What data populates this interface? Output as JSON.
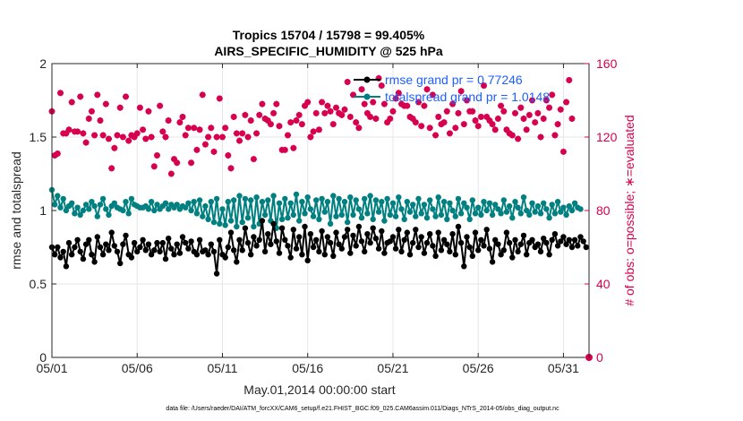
{
  "chart_data": {
    "type": "line",
    "title": "Tropics 15704 / 15798 = 99.405%",
    "subtitle": "AIRS_SPECIFIC_HUMIDITY @ 525 hPa",
    "xlabel": "May.01,2014 00:00:00 start",
    "ylabel": "rmse and totalspread",
    "y2label": "# of obs: o=possible; ∗=evaluated",
    "footer": "data file: /Users/raeder/DAI/ATM_forcXX/CAM6_setup/f.e21.FHIST_BGC.f09_025.CAM6assim.011/Diags_NTrS_2014-05/obs_diag_output.nc",
    "xlim": [
      1,
      32.5
    ],
    "ylim": [
      0,
      2
    ],
    "y2lim": [
      0,
      160
    ],
    "x_ticks": [
      1,
      6,
      11,
      16,
      21,
      26,
      31
    ],
    "x_tick_labels": [
      "05/01",
      "05/06",
      "05/11",
      "05/16",
      "05/21",
      "05/26",
      "05/31"
    ],
    "y_ticks": [
      0,
      0.5,
      1,
      1.5,
      2
    ],
    "y_tick_labels": [
      "0",
      "0.5",
      "1",
      "1.5",
      "2"
    ],
    "y2_ticks": [
      0,
      40,
      80,
      120,
      160
    ],
    "y2_tick_labels": [
      "0",
      "40",
      "80",
      "120",
      "160"
    ],
    "colors": {
      "rmse": "#000000",
      "spread": "#008080",
      "obs": "#D6004E",
      "legend_text": "#1F5FFF"
    },
    "series": [
      {
        "name": "rmse grand pr = 0.77246",
        "axis": "left",
        "marker": "dot",
        "values": [
          0.75,
          0.7,
          0.75,
          0.68,
          0.72,
          0.62,
          0.78,
          0.7,
          0.75,
          0.8,
          0.72,
          0.67,
          0.77,
          0.8,
          0.7,
          0.65,
          0.82,
          0.75,
          0.7,
          0.77,
          0.73,
          0.85,
          0.76,
          0.72,
          0.64,
          0.77,
          0.83,
          0.7,
          0.68,
          0.78,
          0.72,
          0.75,
          0.8,
          0.73,
          0.77,
          0.7,
          0.73,
          0.78,
          0.72,
          0.78,
          0.67,
          0.81,
          0.74,
          0.7,
          0.77,
          0.71,
          0.82,
          0.78,
          0.74,
          0.79,
          0.72,
          0.7,
          0.8,
          0.72,
          0.73,
          0.7,
          0.77,
          0.72,
          0.57,
          0.8,
          0.7,
          0.68,
          0.75,
          0.85,
          0.73,
          0.65,
          0.8,
          0.73,
          0.88,
          0.78,
          0.7,
          0.82,
          0.76,
          0.8,
          0.93,
          0.72,
          0.84,
          0.77,
          0.91,
          0.79,
          0.71,
          0.88,
          0.8,
          0.76,
          0.68,
          0.87,
          0.74,
          0.82,
          0.7,
          0.89,
          0.66,
          0.84,
          0.75,
          0.8,
          0.72,
          0.86,
          0.7,
          0.82,
          0.78,
          0.69,
          0.85,
          0.77,
          0.74,
          0.82,
          0.87,
          0.71,
          0.83,
          0.76,
          0.89,
          0.79,
          0.72,
          0.84,
          0.78,
          0.88,
          0.81,
          0.74,
          0.86,
          0.71,
          0.78,
          0.79,
          0.82,
          0.74,
          0.87,
          0.72,
          0.8,
          0.85,
          0.7,
          0.78,
          0.87,
          0.75,
          0.82,
          0.71,
          0.78,
          0.84,
          0.76,
          0.69,
          0.85,
          0.73,
          0.8,
          0.77,
          0.72,
          0.84,
          0.7,
          0.89,
          0.78,
          0.62,
          0.82,
          0.75,
          0.69,
          0.85,
          0.73,
          0.8,
          0.76,
          0.87,
          0.74,
          0.65,
          0.8,
          0.77,
          0.7,
          0.73,
          0.85,
          0.78,
          0.68,
          0.8,
          0.72,
          0.77,
          0.83,
          0.7,
          0.78,
          0.8,
          0.75,
          0.77,
          0.72,
          0.81,
          0.78,
          0.7,
          0.8,
          0.84,
          0.76,
          0.79,
          0.82,
          0.77,
          0.8,
          0.75,
          0.8,
          0.76,
          0.82,
          0.79,
          0.75
        ]
      },
      {
        "name": "totalspread grand pr = 1.0148",
        "axis": "left",
        "marker": "dot",
        "values": [
          1.14,
          1.04,
          1.1,
          1.02,
          1.08,
          1.0,
          1.03,
          1.05,
          0.98,
          1.02,
          0.97,
          1.0,
          1.04,
          1.01,
          1.06,
          1.03,
          0.96,
          1.04,
          1.08,
          1.01,
          0.97,
          1.03,
          1.05,
          1.02,
          1.01,
          1.0,
          1.06,
          0.98,
          1.08,
          1.04,
          1.03,
          1.02,
          1.02,
          1.03,
          1.01,
          1.06,
          1.0,
          1.04,
          1.01,
          1.03,
          1.05,
          1.01,
          1.04,
          1.02,
          1.04,
          1.01,
          1.03,
          1.02,
          1.05,
          1.0,
          1.06,
          0.98,
          1.07,
          0.96,
          1.03,
          0.94,
          1.06,
          0.92,
          1.08,
          0.91,
          1.01,
          0.9,
          1.06,
          0.93,
          1.07,
          0.89,
          1.1,
          0.92,
          1.08,
          0.95,
          1.07,
          0.89,
          1.09,
          0.91,
          1.06,
          0.97,
          1.07,
          0.93,
          1.1,
          0.88,
          1.05,
          0.94,
          1.08,
          0.95,
          1.05,
          0.97,
          1.11,
          0.93,
          1.06,
          0.98,
          1.09,
          1.01,
          0.96,
          1.07,
          0.94,
          1.08,
          0.99,
          1.06,
          0.91,
          1.1,
          0.96,
          1.08,
          0.97,
          1.06,
          0.92,
          1.09,
          0.97,
          1.07,
          1.01,
          0.95,
          1.08,
          0.98,
          1.1,
          0.94,
          1.07,
          0.99,
          1.06,
          0.93,
          1.08,
          0.97,
          1.05,
          0.96,
          1.09,
          1.01,
          0.94,
          1.06,
          0.99,
          1.04,
          0.96,
          1.08,
          0.98,
          1.04,
          0.95,
          1.07,
          1.01,
          0.96,
          1.09,
          0.97,
          1.06,
          0.94,
          1.05,
          1.0,
          0.96,
          1.08,
          0.98,
          1.05,
          1.02,
          0.94,
          1.07,
          0.98,
          1.02,
          0.97,
          1.06,
          1.0,
          1.05,
          0.97,
          1.04,
          1.01,
          0.98,
          1.07,
          0.99,
          1.03,
          0.95,
          1.06,
          1.02,
          0.98,
          1.09,
          1.0,
          0.97,
          1.05,
          0.99,
          1.03,
          0.98,
          1.05,
          1.01,
          0.95,
          1.04,
          0.98,
          1.06,
          0.99,
          1.02,
          0.97,
          1.03,
          1.0,
          1.05,
          1.02,
          1.01
        ]
      },
      {
        "name": "# of obs evaluated",
        "axis": "right",
        "marker": "asterisk",
        "values": [
          134,
          110,
          111,
          144,
          122,
          122,
          124,
          139,
          123,
          123,
          142,
          122,
          117,
          130,
          134,
          121,
          143,
          129,
          121,
          138,
          119,
          103,
          114,
          121,
          136,
          120,
          142,
          118,
          121,
          120,
          122,
          136,
          124,
          119,
          134,
          120,
          104,
          110,
          137,
          123,
          120,
          129,
          100,
          108,
          106,
          128,
          131,
          121,
          125,
          106,
          125,
          113,
          124,
          143,
          116,
          120,
          125,
          112,
          120,
          141,
          120,
          125,
          110,
          103,
          131,
          122,
          118,
          122,
          132,
          120,
          129,
          108,
          122,
          132,
          138,
          130,
          129,
          127,
          133,
          138,
          126,
          113,
          113,
          121,
          128,
          114,
          129,
          132,
          127,
          137,
          139,
          120,
          123,
          133,
          124,
          139,
          133,
          137,
          134,
          127,
          136,
          133,
          132,
          135,
          150,
          131,
          143,
          128,
          125,
          146,
          138,
          133,
          131,
          139,
          130,
          152,
          148,
          138,
          128,
          130,
          134,
          141,
          144,
          138,
          137,
          137,
          131,
          130,
          128,
          139,
          126,
          137,
          146,
          125,
          143,
          121,
          131,
          127,
          128,
          134,
          122,
          138,
          125,
          133,
          145,
          127,
          140,
          134,
          134,
          129,
          126,
          131,
          148,
          131,
          129,
          127,
          124,
          130,
          137,
          134,
          124,
          122,
          121,
          133,
          119,
          136,
          130,
          124,
          132,
          140,
          128,
          133,
          120,
          130,
          140,
          136,
          143,
          121,
          127,
          135,
          112,
          139,
          151,
          130
        ]
      },
      {
        "name": "# of obs possible",
        "axis": "right",
        "marker": "circle",
        "values": [
          134,
          110,
          111,
          144,
          122,
          122,
          124,
          139,
          123,
          123,
          142,
          122,
          117,
          130,
          134,
          121,
          143,
          129,
          121,
          138,
          119,
          103,
          114,
          121,
          136,
          120,
          142,
          118,
          121,
          120,
          122,
          136,
          124,
          119,
          134,
          120,
          104,
          110,
          137,
          123,
          120,
          129,
          100,
          108,
          106,
          128,
          131,
          121,
          125,
          106,
          125,
          113,
          124,
          143,
          116,
          120,
          125,
          112,
          120,
          141,
          120,
          125,
          110,
          103,
          131,
          122,
          118,
          122,
          132,
          120,
          129,
          108,
          122,
          132,
          138,
          130,
          129,
          127,
          133,
          138,
          126,
          113,
          113,
          121,
          128,
          114,
          129,
          132,
          127,
          137,
          139,
          120,
          123,
          133,
          124,
          139,
          133,
          137,
          134,
          127,
          136,
          133,
          132,
          135,
          150,
          131,
          143,
          128,
          125,
          146,
          138,
          133,
          131,
          139,
          130,
          152,
          148,
          138,
          128,
          130,
          134,
          141,
          144,
          138,
          137,
          137,
          131,
          130,
          128,
          139,
          126,
          137,
          146,
          125,
          143,
          121,
          131,
          127,
          128,
          134,
          122,
          138,
          125,
          133,
          145,
          127,
          140,
          134,
          134,
          129,
          126,
          131,
          148,
          131,
          129,
          127,
          124,
          130,
          137,
          134,
          124,
          122,
          121,
          133,
          119,
          136,
          130,
          124,
          132,
          140,
          128,
          133,
          120,
          130,
          140,
          136,
          143,
          121,
          127,
          135,
          112,
          139,
          151,
          130
        ]
      }
    ],
    "legend": {
      "placement": "top-right",
      "entries": [
        "rmse grand pr = 0.77246",
        "totalspread grand pr = 1.0148"
      ]
    },
    "x_start": 1,
    "x_step": 0.1666667
  }
}
